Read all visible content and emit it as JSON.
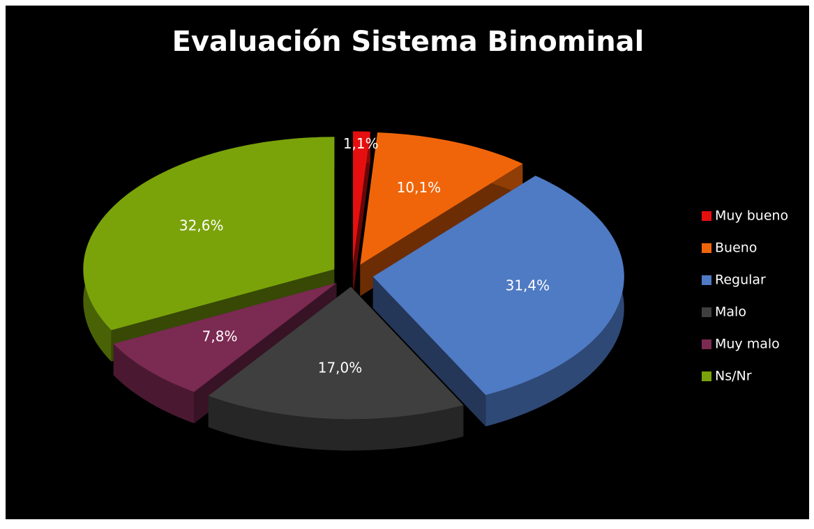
{
  "chart_data": {
    "type": "pie",
    "title": "Evaluación Sistema Binominal",
    "categories": [
      "Muy bueno",
      "Bueno",
      "Regular",
      "Malo",
      "Muy malo",
      "Ns/Nr"
    ],
    "values": [
      1.1,
      10.1,
      31.4,
      17.0,
      7.8,
      32.6
    ],
    "value_labels": [
      "1,1%",
      "10,1%",
      "31,4%",
      "17,0%",
      "7,8%",
      "32,6%"
    ],
    "colors": [
      "#e60f0f",
      "#f0650a",
      "#4f7ac4",
      "#3f3f3f",
      "#7b2a52",
      "#7aa30a"
    ],
    "legend": "right"
  }
}
